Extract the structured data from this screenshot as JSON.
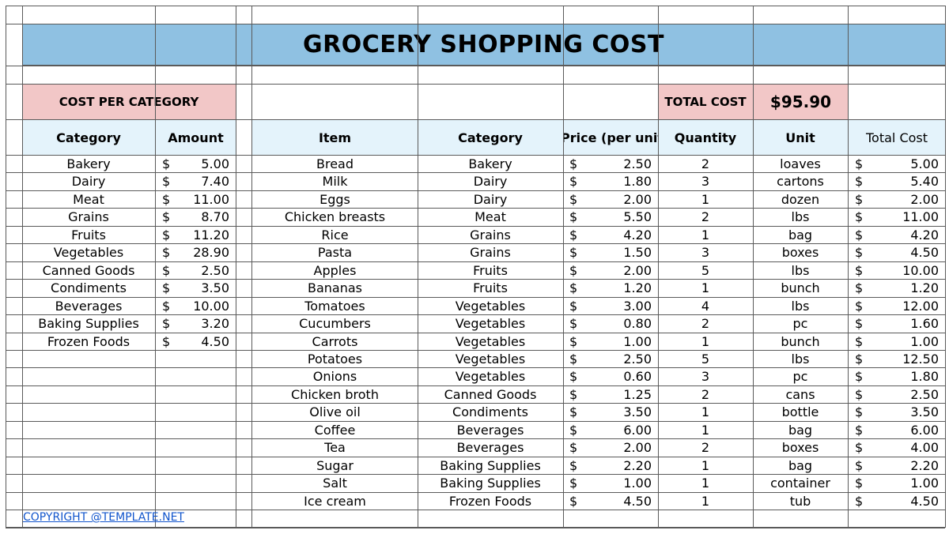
{
  "title": "GROCERY SHOPPING COST",
  "category_section": {
    "heading": "COST PER CATEGORY",
    "columns": [
      "Category",
      "Amount"
    ],
    "rows": [
      {
        "category": "Bakery",
        "currency": "$",
        "amount": "5.00"
      },
      {
        "category": "Dairy",
        "currency": "$",
        "amount": "7.40"
      },
      {
        "category": "Meat",
        "currency": "$",
        "amount": "11.00"
      },
      {
        "category": "Grains",
        "currency": "$",
        "amount": "8.70"
      },
      {
        "category": "Fruits",
        "currency": "$",
        "amount": "11.20"
      },
      {
        "category": "Vegetables",
        "currency": "$",
        "amount": "28.90"
      },
      {
        "category": "Canned Goods",
        "currency": "$",
        "amount": "2.50"
      },
      {
        "category": "Condiments",
        "currency": "$",
        "amount": "3.50"
      },
      {
        "category": "Beverages",
        "currency": "$",
        "amount": "10.00"
      },
      {
        "category": "Baking Supplies",
        "currency": "$",
        "amount": "3.20"
      },
      {
        "category": "Frozen Foods",
        "currency": "$",
        "amount": "4.50"
      }
    ]
  },
  "total": {
    "label": "TOTAL COST",
    "value": "$95.90"
  },
  "items_section": {
    "columns": [
      "Item",
      "Category",
      "Price (per unit)",
      "Quantity",
      "Unit",
      "Total Cost"
    ],
    "rows": [
      {
        "item": "Bread",
        "category": "Bakery",
        "currency": "$",
        "price": "2.50",
        "quantity": "2",
        "unit": "loaves",
        "total_currency": "$",
        "total": "5.00"
      },
      {
        "item": "Milk",
        "category": "Dairy",
        "currency": "$",
        "price": "1.80",
        "quantity": "3",
        "unit": "cartons",
        "total_currency": "$",
        "total": "5.40"
      },
      {
        "item": "Eggs",
        "category": "Dairy",
        "currency": "$",
        "price": "2.00",
        "quantity": "1",
        "unit": "dozen",
        "total_currency": "$",
        "total": "2.00"
      },
      {
        "item": "Chicken breasts",
        "category": "Meat",
        "currency": "$",
        "price": "5.50",
        "quantity": "2",
        "unit": "lbs",
        "total_currency": "$",
        "total": "11.00"
      },
      {
        "item": "Rice",
        "category": "Grains",
        "currency": "$",
        "price": "4.20",
        "quantity": "1",
        "unit": "bag",
        "total_currency": "$",
        "total": "4.20"
      },
      {
        "item": "Pasta",
        "category": "Grains",
        "currency": "$",
        "price": "1.50",
        "quantity": "3",
        "unit": "boxes",
        "total_currency": "$",
        "total": "4.50"
      },
      {
        "item": "Apples",
        "category": "Fruits",
        "currency": "$",
        "price": "2.00",
        "quantity": "5",
        "unit": "lbs",
        "total_currency": "$",
        "total": "10.00"
      },
      {
        "item": "Bananas",
        "category": "Fruits",
        "currency": "$",
        "price": "1.20",
        "quantity": "1",
        "unit": "bunch",
        "total_currency": "$",
        "total": "1.20"
      },
      {
        "item": "Tomatoes",
        "category": "Vegetables",
        "currency": "$",
        "price": "3.00",
        "quantity": "4",
        "unit": "lbs",
        "total_currency": "$",
        "total": "12.00"
      },
      {
        "item": "Cucumbers",
        "category": "Vegetables",
        "currency": "$",
        "price": "0.80",
        "quantity": "2",
        "unit": "pc",
        "total_currency": "$",
        "total": "1.60"
      },
      {
        "item": "Carrots",
        "category": "Vegetables",
        "currency": "$",
        "price": "1.00",
        "quantity": "1",
        "unit": "bunch",
        "total_currency": "$",
        "total": "1.00"
      },
      {
        "item": "Potatoes",
        "category": "Vegetables",
        "currency": "$",
        "price": "2.50",
        "quantity": "5",
        "unit": "lbs",
        "total_currency": "$",
        "total": "12.50"
      },
      {
        "item": "Onions",
        "category": "Vegetables",
        "currency": "$",
        "price": "0.60",
        "quantity": "3",
        "unit": "pc",
        "total_currency": "$",
        "total": "1.80"
      },
      {
        "item": "Chicken broth",
        "category": "Canned Goods",
        "currency": "$",
        "price": "1.25",
        "quantity": "2",
        "unit": "cans",
        "total_currency": "$",
        "total": "2.50"
      },
      {
        "item": "Olive oil",
        "category": "Condiments",
        "currency": "$",
        "price": "3.50",
        "quantity": "1",
        "unit": "bottle",
        "total_currency": "$",
        "total": "3.50"
      },
      {
        "item": "Coffee",
        "category": "Beverages",
        "currency": "$",
        "price": "6.00",
        "quantity": "1",
        "unit": "bag",
        "total_currency": "$",
        "total": "6.00"
      },
      {
        "item": "Tea",
        "category": "Beverages",
        "currency": "$",
        "price": "2.00",
        "quantity": "2",
        "unit": "boxes",
        "total_currency": "$",
        "total": "4.00"
      },
      {
        "item": "Sugar",
        "category": "Baking Supplies",
        "currency": "$",
        "price": "2.20",
        "quantity": "1",
        "unit": "bag",
        "total_currency": "$",
        "total": "2.20"
      },
      {
        "item": "Salt",
        "category": "Baking Supplies",
        "currency": "$",
        "price": "1.00",
        "quantity": "1",
        "unit": "container",
        "total_currency": "$",
        "total": "1.00"
      },
      {
        "item": "Ice cream",
        "category": "Frozen Foods",
        "currency": "$",
        "price": "4.50",
        "quantity": "1",
        "unit": "tub",
        "total_currency": "$",
        "total": "4.50"
      }
    ]
  },
  "footer": {
    "copyright": "COPYRIGHT @TEMPLATE.NET"
  },
  "colors": {
    "title_bg": "#8fc1e2",
    "pink_header_bg": "#f2c7c7",
    "column_header_bg": "#e4f3fb",
    "grid_line": "#5a5a5a",
    "link": "#1155cc"
  }
}
